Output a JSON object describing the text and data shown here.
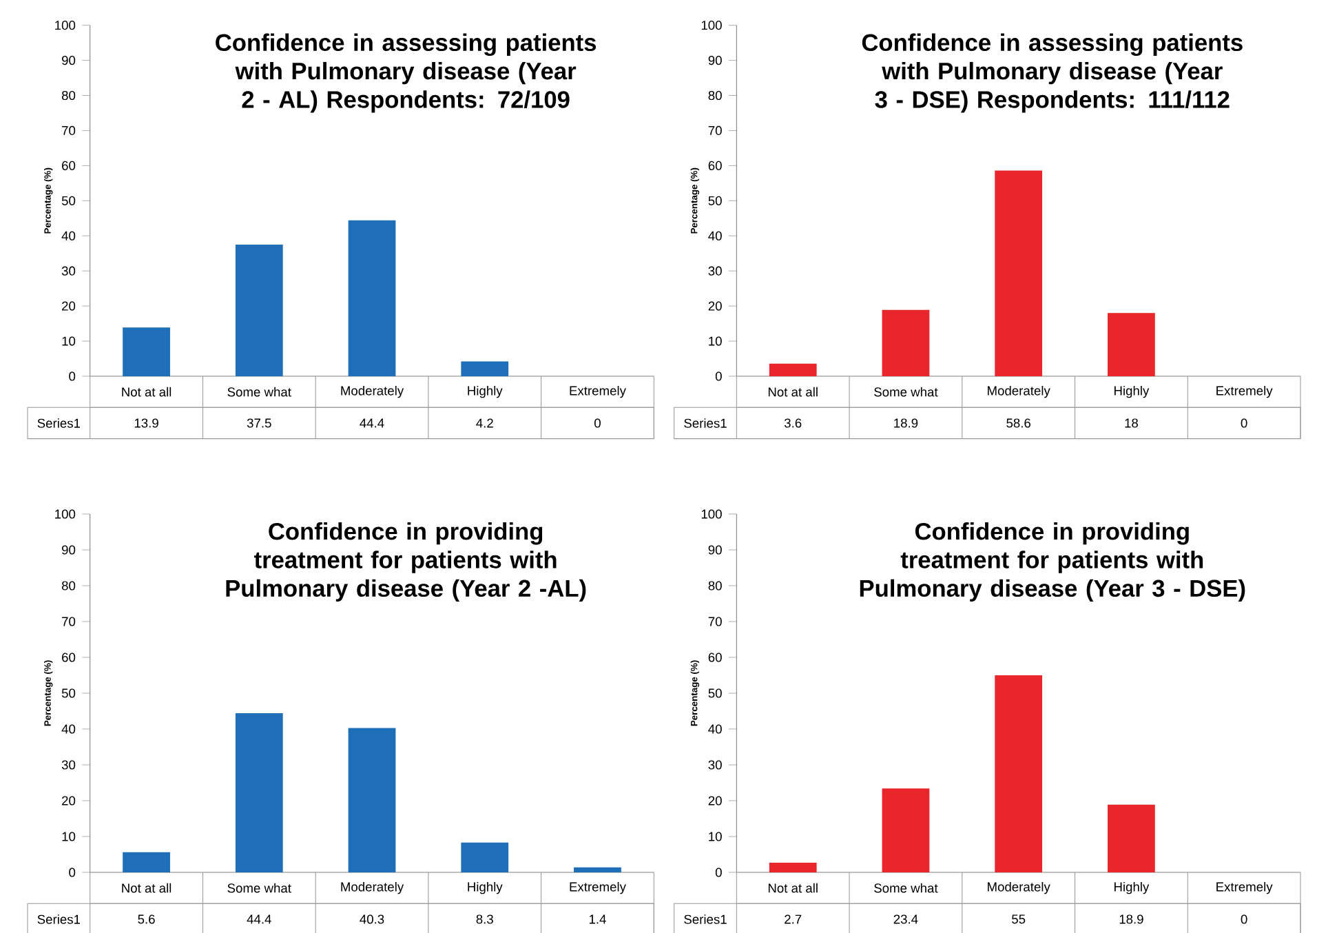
{
  "chart_data": [
    {
      "type": "bar",
      "title": "Confidence in assessing patients with Pulmonary disease (Year 2 - AL) Respondents: 72/109",
      "ylabel": "Percentage (%)",
      "categories": [
        "Not at all",
        "Some what",
        "Moderately",
        "Highly",
        "Extremely"
      ],
      "series": [
        {
          "name": "Series1",
          "color": "#1f6eb8",
          "values": [
            13.9,
            37.5,
            44.4,
            4.2,
            0
          ]
        }
      ],
      "ylim": [
        0,
        100
      ],
      "yticks": [
        0,
        10,
        20,
        30,
        40,
        50,
        60,
        70,
        80,
        90,
        100
      ],
      "data_labels": true
    },
    {
      "type": "bar",
      "title": "Confidence in assessing patients with Pulmonary disease (Year 3 - DSE) Respondents: 111/112",
      "ylabel": "Percentage (%)",
      "categories": [
        "Not at all",
        "Some what",
        "Moderately",
        "Highly",
        "Extremely"
      ],
      "series": [
        {
          "name": "Series1",
          "color": "#e8262b",
          "values": [
            3.6,
            18.9,
            58.6,
            18,
            0
          ]
        }
      ],
      "ylim": [
        0,
        100
      ],
      "yticks": [
        0,
        10,
        20,
        30,
        40,
        50,
        60,
        70,
        80,
        90,
        100
      ],
      "data_labels": true
    },
    {
      "type": "bar",
      "title": "Confidence in providing treatment for patients with Pulmonary disease (Year 2 -AL)",
      "ylabel": "Percentage (%)",
      "categories": [
        "Not at all",
        "Some what",
        "Moderately",
        "Highly",
        "Extremely"
      ],
      "series": [
        {
          "name": "Series1",
          "color": "#1f6eb8",
          "values": [
            5.6,
            44.4,
            40.3,
            8.3,
            1.4
          ]
        }
      ],
      "ylim": [
        0,
        100
      ],
      "yticks": [
        0,
        10,
        20,
        30,
        40,
        50,
        60,
        70,
        80,
        90,
        100
      ],
      "data_labels": true
    },
    {
      "type": "bar",
      "title": "Confidence in providing treatment for patients with Pulmonary disease (Year 3 - DSE)",
      "ylabel": "Percentage (%)",
      "categories": [
        "Not at all",
        "Some what",
        "Moderately",
        "Highly",
        "Extremely"
      ],
      "series": [
        {
          "name": "Series1",
          "color": "#e8262b",
          "values": [
            2.7,
            23.4,
            55,
            18.9,
            0
          ]
        }
      ],
      "ylim": [
        0,
        100
      ],
      "yticks": [
        0,
        10,
        20,
        30,
        40,
        50,
        60,
        70,
        80,
        90,
        100
      ],
      "data_labels": true
    }
  ]
}
